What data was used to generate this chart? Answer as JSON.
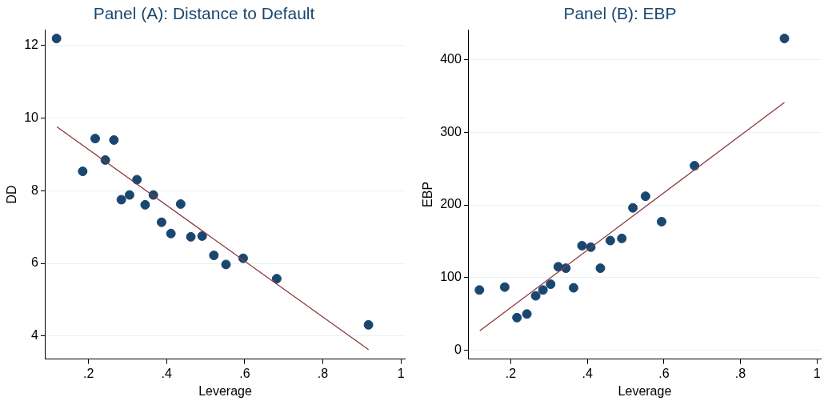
{
  "chart_data": [
    {
      "type": "scatter",
      "title": "Panel (A): Distance to Default",
      "xlabel": "Leverage",
      "ylabel": "DD",
      "xlim": [
        0.09,
        1.01
      ],
      "ylim": [
        3.37,
        12.42
      ],
      "xticks": [
        {
          "value": 0.2,
          "label": ".2"
        },
        {
          "value": 0.4,
          "label": ".4"
        },
        {
          "value": 0.6,
          "label": ".6"
        },
        {
          "value": 0.8,
          "label": ".8"
        },
        1
      ],
      "yticks": [
        4,
        6,
        8,
        10,
        12
      ],
      "grid": "y",
      "legend": false,
      "series": [
        {
          "type": "scatter",
          "marker": "circle",
          "color": "#1a476f",
          "x": [
            0.118,
            0.185,
            0.217,
            0.243,
            0.265,
            0.284,
            0.305,
            0.324,
            0.345,
            0.366,
            0.387,
            0.411,
            0.436,
            0.462,
            0.491,
            0.521,
            0.552,
            0.596,
            0.682,
            0.917
          ],
          "values": [
            12.18,
            8.53,
            9.43,
            8.84,
            9.39,
            7.75,
            7.88,
            8.3,
            7.61,
            7.88,
            7.13,
            6.82,
            7.63,
            6.73,
            6.75,
            6.22,
            5.97,
            6.14,
            5.58,
            4.31
          ]
        },
        {
          "type": "line",
          "marker": "none",
          "color": "#90353b",
          "x": [
            0.119,
            0.917
          ],
          "values": [
            9.75,
            3.63
          ]
        }
      ]
    },
    {
      "type": "scatter",
      "title": "Panel (B): EBP",
      "xlabel": "Leverage",
      "ylabel": "EBP",
      "xlim": [
        0.09,
        1.01
      ],
      "ylim": [
        -12,
        441
      ],
      "xticks": [
        {
          "value": 0.2,
          "label": ".2"
        },
        {
          "value": 0.4,
          "label": ".4"
        },
        {
          "value": 0.6,
          "label": ".6"
        },
        {
          "value": 0.8,
          "label": ".8"
        },
        1
      ],
      "yticks": [
        0,
        100,
        200,
        300,
        400
      ],
      "grid": "y",
      "legend": false,
      "series": [
        {
          "type": "scatter",
          "marker": "circle",
          "color": "#1a476f",
          "x": [
            0.118,
            0.184,
            0.216,
            0.242,
            0.265,
            0.284,
            0.304,
            0.324,
            0.344,
            0.364,
            0.386,
            0.409,
            0.434,
            0.46,
            0.49,
            0.519,
            0.552,
            0.594,
            0.68,
            0.915
          ],
          "values": [
            83,
            87,
            45,
            50,
            75,
            83,
            91,
            115,
            113,
            86,
            144,
            142,
            113,
            151,
            154,
            196,
            212,
            177,
            254,
            429
          ]
        },
        {
          "type": "line",
          "marker": "none",
          "color": "#90353b",
          "x": [
            0.119,
            0.915
          ],
          "values": [
            27,
            341
          ]
        }
      ]
    }
  ]
}
